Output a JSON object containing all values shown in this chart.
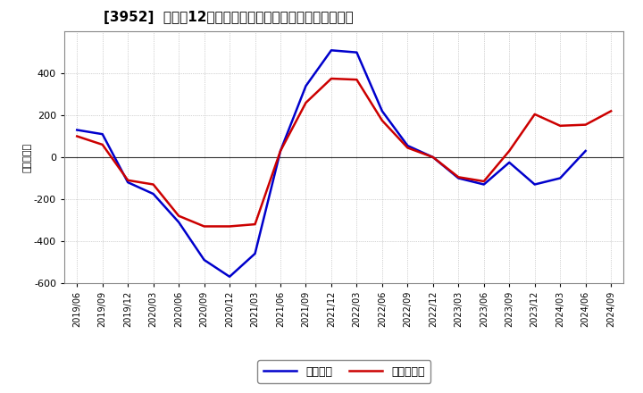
{
  "title": "[3952]  利益だ12か月移動合計の対前年同期増減額の推移",
  "ylabel": "（百万円）",
  "legend_labels": [
    "経常利益",
    "当期純利益"
  ],
  "line_colors": [
    "#0000cc",
    "#cc0000"
  ],
  "background_color": "#ffffff",
  "plot_bg_color": "#ffffff",
  "ylim": [
    -600,
    600
  ],
  "yticks": [
    -600,
    -400,
    -200,
    0,
    200,
    400
  ],
  "dates": [
    "2019/06",
    "2019/09",
    "2019/12",
    "2020/03",
    "2020/06",
    "2020/09",
    "2020/12",
    "2021/03",
    "2021/06",
    "2021/09",
    "2021/12",
    "2022/03",
    "2022/06",
    "2022/09",
    "2022/12",
    "2023/03",
    "2023/06",
    "2023/09",
    "2023/12",
    "2024/03",
    "2024/06",
    "2024/09"
  ],
  "keijo_rieki": [
    130,
    110,
    -120,
    -175,
    -310,
    -490,
    -570,
    -460,
    30,
    340,
    510,
    500,
    220,
    55,
    0,
    -100,
    -130,
    -25,
    -130,
    -100,
    30,
    null
  ],
  "touki_jun_rieki": [
    100,
    60,
    -110,
    -130,
    -280,
    -330,
    -330,
    -320,
    30,
    260,
    375,
    370,
    175,
    45,
    0,
    -95,
    -115,
    30,
    205,
    150,
    155,
    220
  ]
}
